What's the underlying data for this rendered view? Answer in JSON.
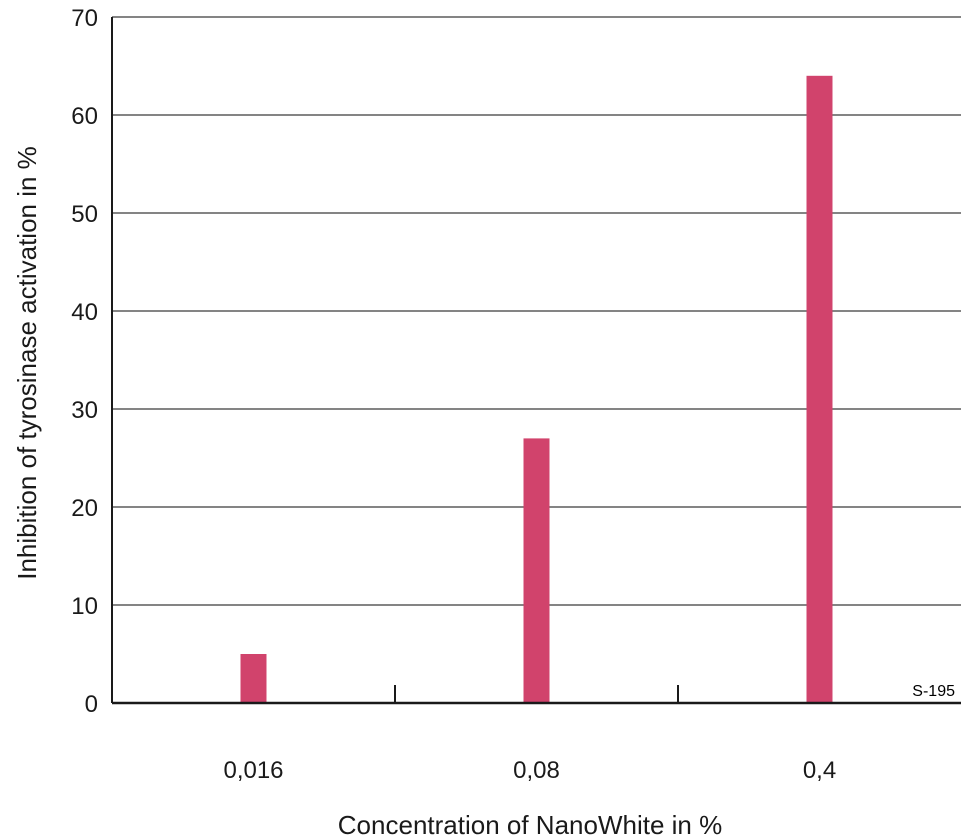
{
  "chart_data": {
    "type": "bar",
    "categories": [
      "0,016",
      "0,08",
      "0,4"
    ],
    "values": [
      5,
      27,
      64
    ],
    "xlabel": "Concentration of NanoWhite in %",
    "ylabel": "Inhibition of tyrosinase activation in %",
    "ylim": [
      0,
      70
    ],
    "yticks": [
      0,
      10,
      20,
      30,
      40,
      50,
      60,
      70
    ],
    "grid": true,
    "bar_color": "#d1436c",
    "annotation": "S-195"
  }
}
